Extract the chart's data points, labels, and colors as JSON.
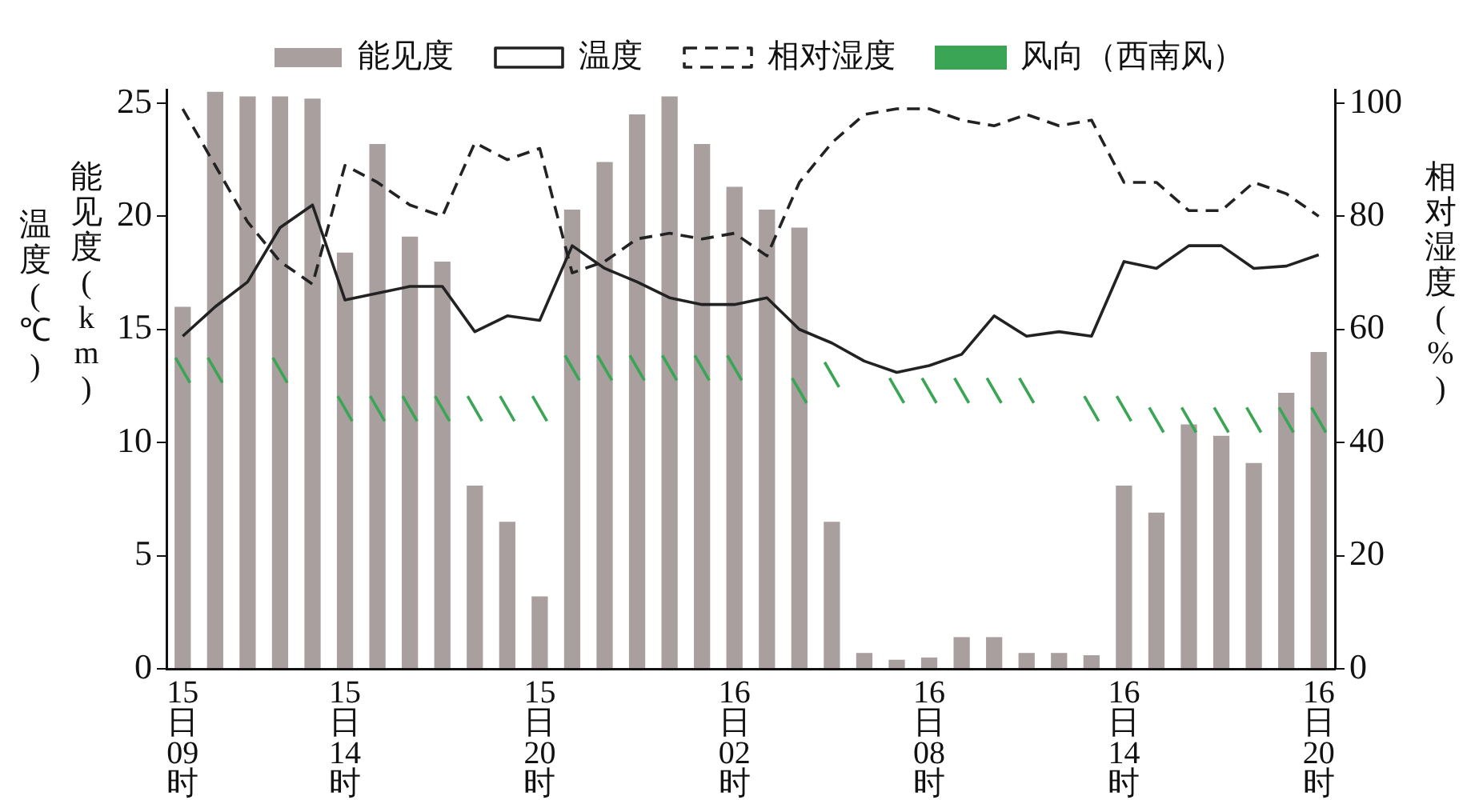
{
  "chart_data": {
    "type": "bar",
    "categories": [
      "15\n日\n09\n时",
      null,
      null,
      null,
      null,
      "15\n日\n14\n时",
      null,
      null,
      null,
      null,
      null,
      "15\n日\n20\n时",
      null,
      null,
      null,
      null,
      null,
      "16\n日\n02\n时",
      null,
      null,
      null,
      null,
      null,
      "16\n日\n08\n时",
      null,
      null,
      null,
      null,
      null,
      "16\n日\n14\n时",
      null,
      null,
      null,
      null,
      null,
      "16\n日\n20\n时"
    ],
    "series": [
      {
        "name": "能见度",
        "color": "#a99f9f",
        "values": [
          16,
          25.5,
          25.3,
          25.3,
          25.2,
          18.4,
          23.2,
          19.1,
          18,
          8.1,
          6.5,
          3.2,
          20.3,
          22.4,
          24.5,
          25.3,
          23.2,
          21.3,
          20.3,
          19.5,
          6.5,
          0.7,
          0.4,
          0.5,
          1.4,
          1.4,
          0.7,
          0.7,
          0.6,
          8.1,
          6.9,
          10.8,
          10.3,
          9.1,
          12.2,
          14
        ]
      },
      {
        "name": "温度",
        "type": "line",
        "color": "#222222",
        "line_style": "solid",
        "values": [
          14.7,
          16,
          17.1,
          19.5,
          20.5,
          16.3,
          16.6,
          16.9,
          16.9,
          14.9,
          15.6,
          15.4,
          18.7,
          17.7,
          17.1,
          16.4,
          16.1,
          16.1,
          16.4,
          15,
          14.4,
          13.6,
          13.1,
          13.4,
          13.9,
          15.6,
          14.7,
          14.9,
          14.7,
          18,
          17.7,
          18.7,
          18.7,
          17.7,
          17.8,
          18.3
        ]
      },
      {
        "name": "相对湿度",
        "type": "line",
        "axis": "y2",
        "color": "#222222",
        "line_style": "dashed",
        "values": [
          99,
          89,
          79,
          72,
          68,
          89,
          86,
          82,
          80,
          93,
          90,
          92,
          70,
          72,
          76,
          77,
          76,
          77,
          73,
          86,
          93,
          98,
          99,
          99,
          97,
          96,
          98,
          96,
          97,
          86,
          86,
          81,
          81,
          86,
          84,
          80
        ]
      },
      {
        "name": "风向（西南风）",
        "type": "scatter",
        "color": "#3aa655",
        "marker": "cross",
        "values": [
          13.2,
          13.2,
          null,
          13.2,
          null,
          11.5,
          11.5,
          11.5,
          11.5,
          11.5,
          11.5,
          11.5,
          13.3,
          13.3,
          13.3,
          13.3,
          13.3,
          13.3,
          null,
          12.3,
          13,
          null,
          12.3,
          12.3,
          12.3,
          12.3,
          12.3,
          null,
          11.5,
          11.5,
          11,
          11,
          11,
          11,
          11,
          11
        ]
      }
    ],
    "ylabel": "能见度(km)",
    "y2label": "相对湿度(%)",
    "annotations": [
      "温度(℃)"
    ],
    "ylim": [
      0,
      25.6
    ],
    "yticks": [
      0,
      5,
      10,
      15,
      20,
      25
    ],
    "y2lim": [
      0,
      102.4
    ],
    "y2ticks": [
      0,
      20,
      40,
      60,
      80,
      100
    ],
    "grid": false,
    "legend": "top"
  }
}
